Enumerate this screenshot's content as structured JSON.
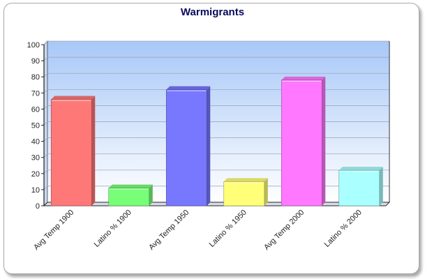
{
  "chart_data": {
    "type": "bar",
    "title": "Warmigrants",
    "xlabel": "",
    "ylabel": "",
    "ylim": [
      0,
      100
    ],
    "yticks": [
      0,
      10,
      20,
      30,
      40,
      50,
      60,
      70,
      80,
      90,
      100
    ],
    "grid": true,
    "categories": [
      "Avg Temp 1900",
      "Latino %  1900",
      "Avg Temp 1950",
      "Latino % 1950",
      "Avg Temp 2000",
      "Latino % 2000"
    ],
    "values": [
      66,
      11,
      72,
      15,
      78,
      22
    ],
    "colors": [
      "#ff7878",
      "#78ff78",
      "#7878ff",
      "#ffff78",
      "#ff78ff",
      "#aaffff"
    ]
  }
}
